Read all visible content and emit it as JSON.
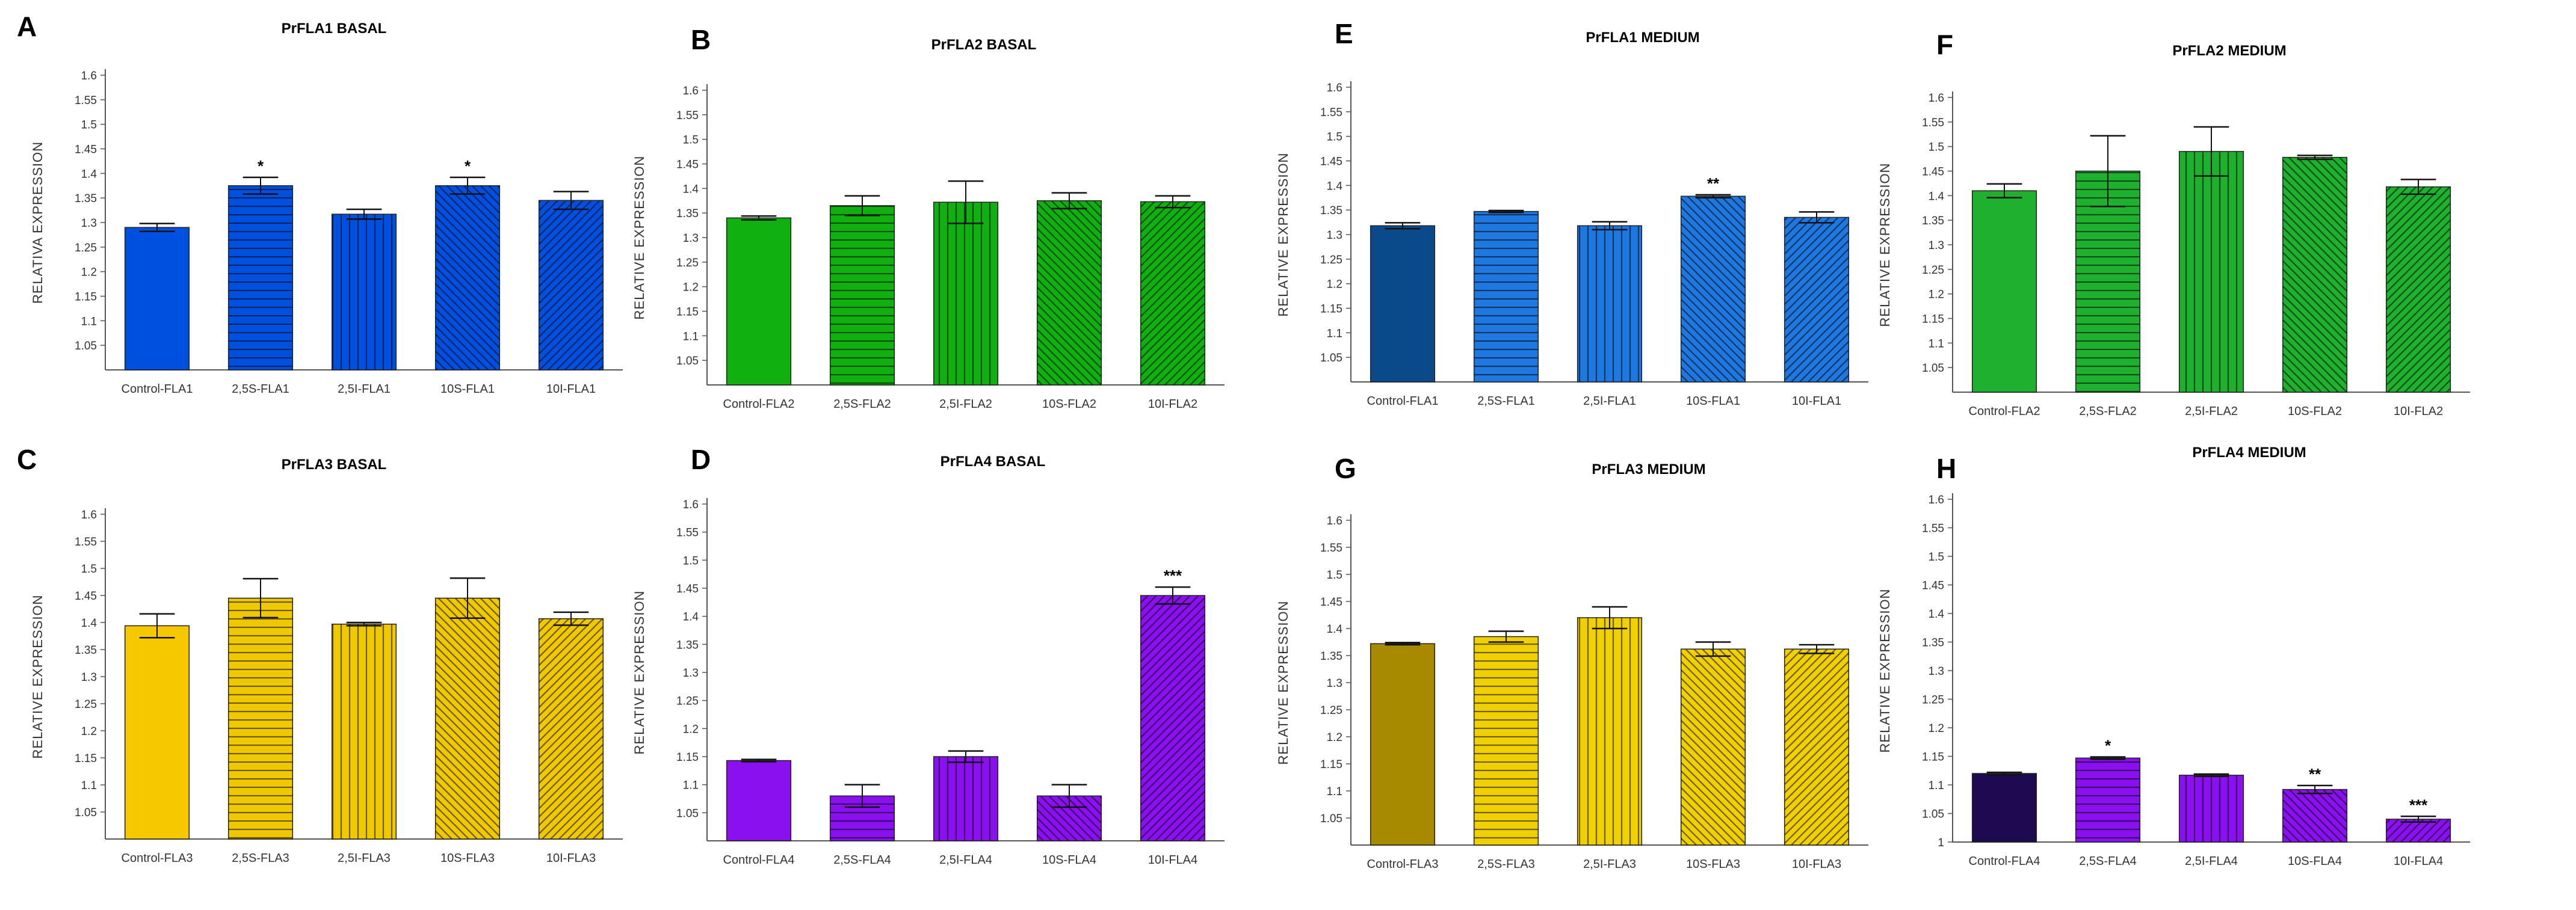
{
  "figure": {
    "common_ylabel": "RELATIVE EXPRESSION",
    "panels": [
      {
        "letter": "A",
        "title": "PrFLA1 BASAL",
        "ylabel": "RELATIVA EXPRESSION",
        "bottom": 1.0
      },
      {
        "letter": "B",
        "title": "PrFLA2 BASAL",
        "ylabel": "RELATIVE EXPRESSION",
        "bottom": 1.0
      },
      {
        "letter": "E",
        "title": "PrFLA1 MEDIUM",
        "ylabel": "RELATIVE EXPRESSION",
        "bottom": 1.0
      },
      {
        "letter": "F",
        "title": "PrFLA2  MEDIUM",
        "ylabel": "RELATIVE EXPRESSION",
        "bottom": 1.0
      },
      {
        "letter": "C",
        "title": "PrFLA3 BASAL",
        "ylabel": "RELATIVE EXPRESSION",
        "bottom": 1.0
      },
      {
        "letter": "D",
        "title": "PrFLA4 BASAL",
        "ylabel": "RELATIVE EXPRESSION",
        "bottom": 1.0
      },
      {
        "letter": "G",
        "title": "PrFLA3  MEDIUM",
        "ylabel": "RELATIVE EXPRESSION",
        "bottom": 1.0
      },
      {
        "letter": "H",
        "title": "PrFLA4 MEDIUM",
        "ylabel": "RELATIVE EXPRESSION",
        "bottom": 1.0
      }
    ]
  },
  "chart_data": [
    {
      "type": "bar",
      "title": "PrFLA1 BASAL",
      "ylabel": "RELATIVA EXPRESSION",
      "ylim": [
        1.0,
        1.6
      ],
      "yticks": [
        "1.05",
        "1.1",
        "1.15",
        "1.2",
        "1.25",
        "1.3",
        "1.35",
        "1.4",
        "1.45",
        "1.5",
        "1.55",
        "1.6"
      ],
      "categories": [
        "Control-FLA1",
        "2,5S-FLA1",
        "2,5I-FLA1",
        "10S-FLA1",
        "10I-FLA1"
      ],
      "values": [
        1.29,
        1.375,
        1.317,
        1.375,
        1.345
      ],
      "errors": [
        0.008,
        0.017,
        0.01,
        0.017,
        0.018
      ],
      "significance": [
        "",
        "*",
        "",
        "*",
        ""
      ],
      "colors": [
        "#0050e0",
        "#0050e0",
        "#0050e0",
        "#0050e0",
        "#0050e0"
      ],
      "patterns": [
        "solid",
        "horizontal",
        "vertical",
        "diagonal-down",
        "diagonal-up"
      ]
    },
    {
      "type": "bar",
      "title": "PrFLA2 BASAL",
      "ylabel": "RELATIVE EXPRESSION",
      "ylim": [
        1.0,
        1.6
      ],
      "yticks": [
        "1.05",
        "1.1",
        "1.15",
        "1.2",
        "1.25",
        "1.3",
        "1.35",
        "1.4",
        "1.45",
        "1.5",
        "1.55",
        "1.6"
      ],
      "categories": [
        "Control-FLA2",
        "2,5S-FLA2",
        "2,5I-FLA2",
        "10S-FLA2",
        "10I-FLA2"
      ],
      "values": [
        1.34,
        1.365,
        1.372,
        1.375,
        1.373
      ],
      "errors": [
        0.004,
        0.02,
        0.043,
        0.016,
        0.012
      ],
      "significance": [
        "",
        "",
        "",
        "",
        ""
      ],
      "colors": [
        "#10b010",
        "#10b010",
        "#10b010",
        "#10b010",
        "#10b010"
      ],
      "patterns": [
        "solid",
        "horizontal",
        "vertical",
        "diagonal-down",
        "diagonal-up"
      ]
    },
    {
      "type": "bar",
      "title": "PrFLA1 MEDIUM",
      "ylabel": "RELATIVE EXPRESSION",
      "ylim": [
        1.0,
        1.6
      ],
      "yticks": [
        "1.05",
        "1.1",
        "1.15",
        "1.2",
        "1.25",
        "1.3",
        "1.35",
        "1.4",
        "1.45",
        "1.5",
        "1.55",
        "1.6"
      ],
      "categories": [
        "Control-FLA1",
        "2,5S-FLA1",
        "2,5I-FLA1",
        "10S-FLA1",
        "10I-FLA1"
      ],
      "values": [
        1.318,
        1.347,
        1.318,
        1.378,
        1.335
      ],
      "errors": [
        0.006,
        0.002,
        0.008,
        0.003,
        0.011
      ],
      "significance": [
        "",
        "",
        "",
        "**",
        ""
      ],
      "colors": [
        "#0a4a8a",
        "#1e78e0",
        "#1e78e0",
        "#1e78e0",
        "#1e78e0"
      ],
      "patterns": [
        "solid",
        "horizontal",
        "vertical",
        "diagonal-down",
        "diagonal-up"
      ]
    },
    {
      "type": "bar",
      "title": "PrFLA2  MEDIUM",
      "ylabel": "RELATIVE EXPRESSION",
      "ylim": [
        1.0,
        1.6
      ],
      "yticks": [
        "1.05",
        "1.1",
        "1.15",
        "1.2",
        "1.25",
        "1.3",
        "1.35",
        "1.4",
        "1.45",
        "1.5",
        "1.55",
        "1.6"
      ],
      "categories": [
        "Control-FLA2",
        "2,5S-FLA2",
        "2,5I-FLA2",
        "10S-FLA2",
        "10I-FLA2"
      ],
      "values": [
        1.41,
        1.45,
        1.49,
        1.478,
        1.418
      ],
      "errors": [
        0.014,
        0.072,
        0.05,
        0.004,
        0.015
      ],
      "significance": [
        "",
        "",
        "",
        "",
        ""
      ],
      "colors": [
        "#20b030",
        "#20b030",
        "#20b030",
        "#20b030",
        "#20b030"
      ],
      "patterns": [
        "solid",
        "horizontal",
        "vertical",
        "diagonal-down",
        "diagonal-up"
      ]
    },
    {
      "type": "bar",
      "title": "PrFLA3 BASAL",
      "ylabel": "RELATIVE EXPRESSION",
      "ylim": [
        1.0,
        1.6
      ],
      "yticks": [
        "1.05",
        "1.1",
        "1.15",
        "1.2",
        "1.25",
        "1.3",
        "1.35",
        "1.4",
        "1.45",
        "1.5",
        "1.55",
        "1.6"
      ],
      "categories": [
        "Control-FLA3",
        "2,5S-FLA3",
        "2,5I-FLA3",
        "10S-FLA3",
        "10I-FLA3"
      ],
      "values": [
        1.394,
        1.445,
        1.397,
        1.445,
        1.407
      ],
      "errors": [
        0.022,
        0.036,
        0.003,
        0.037,
        0.012
      ],
      "significance": [
        "",
        "",
        "",
        "",
        ""
      ],
      "colors": [
        "#f5c800",
        "#f0c800",
        "#f0c800",
        "#f0c800",
        "#f0c800"
      ],
      "patterns": [
        "solid",
        "horizontal",
        "vertical",
        "diagonal-down",
        "diagonal-up"
      ]
    },
    {
      "type": "bar",
      "title": "PrFLA4 BASAL",
      "ylabel": "RELATIVE EXPRESSION",
      "ylim": [
        1.0,
        1.6
      ],
      "yticks": [
        "1.05",
        "1.1",
        "1.15",
        "1.2",
        "1.25",
        "1.3",
        "1.35",
        "1.4",
        "1.45",
        "1.5",
        "1.55",
        "1.6"
      ],
      "categories": [
        "Control-FLA4",
        "2,5S-FLA4",
        "2,5I-FLA4",
        "10S-FLA4",
        "10I-FLA4"
      ],
      "values": [
        1.143,
        1.08,
        1.15,
        1.08,
        1.437
      ],
      "errors": [
        0.002,
        0.02,
        0.01,
        0.02,
        0.015
      ],
      "significance": [
        "",
        "",
        "",
        "",
        "***"
      ],
      "colors": [
        "#8a10f0",
        "#8a10f0",
        "#8a10f0",
        "#8a10f0",
        "#8a10f0"
      ],
      "patterns": [
        "solid",
        "horizontal",
        "vertical",
        "diagonal-down",
        "diagonal-up"
      ]
    },
    {
      "type": "bar",
      "title": "PrFLA3  MEDIUM",
      "ylabel": "RELATIVE EXPRESSION",
      "ylim": [
        1.0,
        1.6
      ],
      "yticks": [
        "1.05",
        "1.1",
        "1.15",
        "1.2",
        "1.25",
        "1.3",
        "1.35",
        "1.4",
        "1.45",
        "1.5",
        "1.55",
        "1.6"
      ],
      "categories": [
        "Control-FLA3",
        "2,5S-FLA3",
        "2,5I-FLA3",
        "10S-FLA3",
        "10I-FLA3"
      ],
      "values": [
        1.372,
        1.385,
        1.42,
        1.362,
        1.362
      ],
      "errors": [
        0.002,
        0.01,
        0.02,
        0.013,
        0.008
      ],
      "significance": [
        "",
        "",
        "",
        "",
        ""
      ],
      "colors": [
        "#a88a00",
        "#f0d000",
        "#f0d000",
        "#f0d000",
        "#f0d000"
      ],
      "patterns": [
        "solid",
        "horizontal",
        "vertical",
        "diagonal-down",
        "diagonal-up"
      ]
    },
    {
      "type": "bar",
      "title": "PrFLA4 MEDIUM",
      "ylabel": "RELATIVE EXPRESSION",
      "ylim": [
        1.0,
        1.6
      ],
      "yticks": [
        "1",
        "1.05",
        "1.1",
        "1.15",
        "1.2",
        "1.25",
        "1.3",
        "1.35",
        "1.4",
        "1.45",
        "1.5",
        "1.55",
        "1.6"
      ],
      "categories": [
        "Control-FLA4",
        "2,5S-FLA4",
        "2,5I-FLA4",
        "10S-FLA4",
        "10I-FLA4"
      ],
      "values": [
        1.12,
        1.147,
        1.117,
        1.092,
        1.04
      ],
      "errors": [
        0.002,
        0.002,
        0.002,
        0.007,
        0.005
      ],
      "significance": [
        "",
        "*",
        "",
        "**",
        "***"
      ],
      "colors": [
        "#1e0a50",
        "#8a10f0",
        "#8a10f0",
        "#8a10f0",
        "#8a10f0"
      ],
      "patterns": [
        "solid",
        "horizontal",
        "vertical",
        "diagonal-down",
        "diagonal-up"
      ]
    }
  ]
}
